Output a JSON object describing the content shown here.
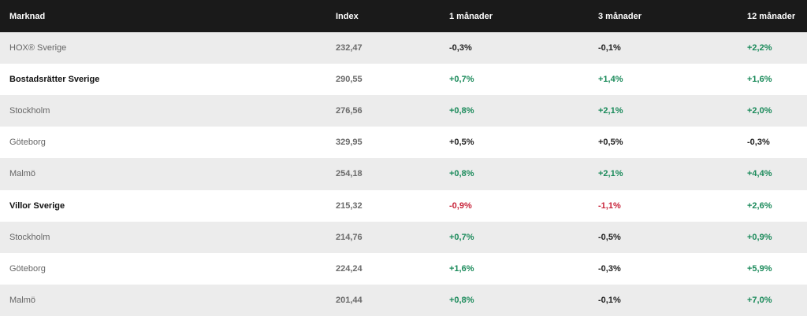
{
  "header": {
    "market": "Marknad",
    "index": "Index",
    "m1": "1 månader",
    "m3": "3 månader",
    "m12": "12 månader"
  },
  "rows": [
    {
      "name": "HOX® Sverige",
      "index": "232,47",
      "m1": "-0,3%",
      "m3": "-0,1%",
      "m12": "+2,2%",
      "bold": false
    },
    {
      "name": "Bostadsrätter Sverige",
      "index": "290,55",
      "m1": "+0,7%",
      "m3": "+1,4%",
      "m12": "+1,6%",
      "bold": true
    },
    {
      "name": "Stockholm",
      "index": "276,56",
      "m1": "+0,8%",
      "m3": "+2,1%",
      "m12": "+2,0%",
      "bold": false
    },
    {
      "name": "Göteborg",
      "index": "329,95",
      "m1": "+0,5%",
      "m3": "+0,5%",
      "m12": "-0,3%",
      "bold": false
    },
    {
      "name": "Malmö",
      "index": "254,18",
      "m1": "+0,8%",
      "m3": "+2,1%",
      "m12": "+4,4%",
      "bold": false
    },
    {
      "name": "Villor Sverige",
      "index": "215,32",
      "m1": "-0,9%",
      "m3": "-1,1%",
      "m12": "+2,6%",
      "bold": true
    },
    {
      "name": "Stockholm",
      "index": "214,76",
      "m1": "+0,7%",
      "m3": "-0,5%",
      "m12": "+0,9%",
      "bold": false
    },
    {
      "name": "Göteborg",
      "index": "224,24",
      "m1": "+1,6%",
      "m3": "-0,3%",
      "m12": "+5,9%",
      "bold": false
    },
    {
      "name": "Malmö",
      "index": "201,44",
      "m1": "+0,8%",
      "m3": "-0,1%",
      "m12": "+7,0%",
      "bold": false
    }
  ],
  "colors": {
    "header_bg": "#1a1a1a",
    "row_alt_bg": "#ececec",
    "positive": "#1a8a5a",
    "negative": "#c8243a",
    "neutral": "#222222"
  }
}
